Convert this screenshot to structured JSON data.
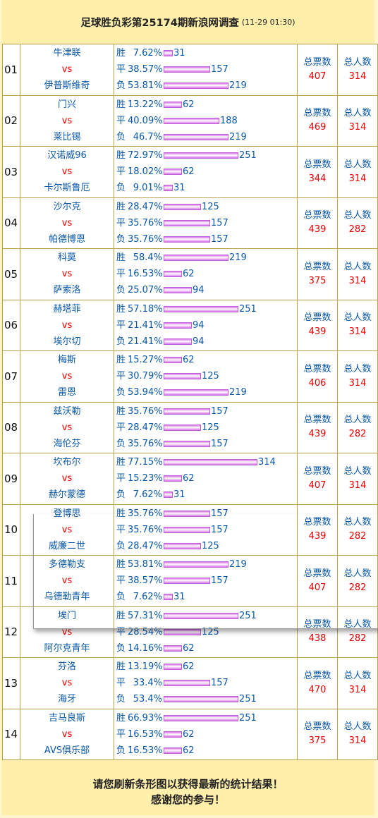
{
  "header": {
    "title": "足球胜负彩第25174期新浪网调查",
    "time": "(11-29 01:30)"
  },
  "labels": {
    "win": "胜",
    "draw": "平",
    "lose": "负",
    "vs": "vs",
    "total_votes": "总票数",
    "total_people": "总人数"
  },
  "colors": {
    "team": "#0a58a8",
    "vs": "#e60000",
    "bar": "#d873e8",
    "border": "#b9a24a",
    "background": "#ffefab"
  },
  "matches": [
    {
      "no": "01",
      "home": "牛津联",
      "away": "伊普斯维奇",
      "win": {
        "pct": "7.62%",
        "count": 31
      },
      "draw": {
        "pct": "38.57%",
        "count": 157
      },
      "lose": {
        "pct": "53.81%",
        "count": 219
      },
      "total_votes": 407,
      "total_people": 314
    },
    {
      "no": "02",
      "home": "门兴",
      "away": "莱比锡",
      "win": {
        "pct": "13.22%",
        "count": 62
      },
      "draw": {
        "pct": "40.09%",
        "count": 188
      },
      "lose": {
        "pct": "46.7%",
        "count": 219
      },
      "total_votes": 469,
      "total_people": 314
    },
    {
      "no": "03",
      "home": "汉诺威96",
      "away": "卡尔斯鲁厄",
      "win": {
        "pct": "72.97%",
        "count": 251
      },
      "draw": {
        "pct": "18.02%",
        "count": 62
      },
      "lose": {
        "pct": "9.01%",
        "count": 31
      },
      "total_votes": 344,
      "total_people": 314
    },
    {
      "no": "04",
      "home": "沙尔克",
      "away": "帕德博恩",
      "win": {
        "pct": "28.47%",
        "count": 125
      },
      "draw": {
        "pct": "35.76%",
        "count": 157
      },
      "lose": {
        "pct": "35.76%",
        "count": 157
      },
      "total_votes": 439,
      "total_people": 282
    },
    {
      "no": "05",
      "home": "科莫",
      "away": "萨索洛",
      "win": {
        "pct": "58.4%",
        "count": 219
      },
      "draw": {
        "pct": "16.53%",
        "count": 62
      },
      "lose": {
        "pct": "25.07%",
        "count": 94
      },
      "total_votes": 375,
      "total_people": 314
    },
    {
      "no": "06",
      "home": "赫塔菲",
      "away": "埃尔切",
      "win": {
        "pct": "57.18%",
        "count": 251
      },
      "draw": {
        "pct": "21.41%",
        "count": 94
      },
      "lose": {
        "pct": "21.41%",
        "count": 94
      },
      "total_votes": 439,
      "total_people": 314
    },
    {
      "no": "07",
      "home": "梅斯",
      "away": "雷恩",
      "win": {
        "pct": "15.27%",
        "count": 62
      },
      "draw": {
        "pct": "30.79%",
        "count": 125
      },
      "lose": {
        "pct": "53.94%",
        "count": 219
      },
      "total_votes": 406,
      "total_people": 314
    },
    {
      "no": "08",
      "home": "兹沃勒",
      "away": "海伦芬",
      "win": {
        "pct": "35.76%",
        "count": 157
      },
      "draw": {
        "pct": "28.47%",
        "count": 125
      },
      "lose": {
        "pct": "35.76%",
        "count": 157
      },
      "total_votes": 439,
      "total_people": 282
    },
    {
      "no": "09",
      "home": "坎布尔",
      "away": "赫尔蒙德",
      "win": {
        "pct": "77.15%",
        "count": 314
      },
      "draw": {
        "pct": "15.23%",
        "count": 62
      },
      "lose": {
        "pct": "7.62%",
        "count": 31
      },
      "total_votes": 407,
      "total_people": 314
    },
    {
      "no": "10",
      "home": "登博思",
      "away": "威廉二世",
      "win": {
        "pct": "35.76%",
        "count": 157
      },
      "draw": {
        "pct": "35.76%",
        "count": 157
      },
      "lose": {
        "pct": "28.47%",
        "count": 125
      },
      "total_votes": 439,
      "total_people": 282
    },
    {
      "no": "11",
      "home": "多德勒支",
      "away": "乌德勒青年",
      "win": {
        "pct": "53.81%",
        "count": 219
      },
      "draw": {
        "pct": "38.57%",
        "count": 157
      },
      "lose": {
        "pct": "7.62%",
        "count": 31
      },
      "total_votes": 407,
      "total_people": 282
    },
    {
      "no": "12",
      "home": "埃门",
      "away": "阿尔克青年",
      "win": {
        "pct": "57.31%",
        "count": 251
      },
      "draw": {
        "pct": "28.54%",
        "count": 125
      },
      "lose": {
        "pct": "14.16%",
        "count": 62
      },
      "total_votes": 438,
      "total_people": 282
    },
    {
      "no": "13",
      "home": "芬洛",
      "away": "海牙",
      "win": {
        "pct": "13.19%",
        "count": 62
      },
      "draw": {
        "pct": "33.4%",
        "count": 157
      },
      "lose": {
        "pct": "53.4%",
        "count": 251
      },
      "total_votes": 470,
      "total_people": 314
    },
    {
      "no": "14",
      "home": "吉马良斯",
      "away": "AVS俱乐部",
      "win": {
        "pct": "66.93%",
        "count": 251
      },
      "draw": {
        "pct": "16.53%",
        "count": 62
      },
      "lose": {
        "pct": "16.53%",
        "count": 62
      },
      "total_votes": 375,
      "total_people": 314
    }
  ],
  "footer": {
    "line1": "请您刷新条形图以获得最新的统计结果！",
    "line2": "感谢您的参与！"
  }
}
